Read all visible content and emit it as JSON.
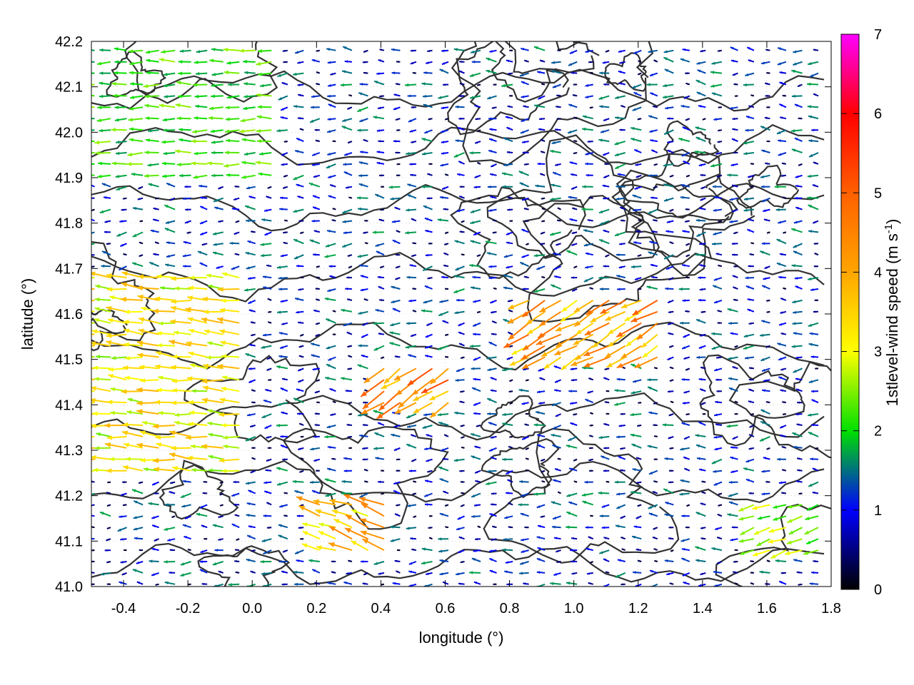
{
  "chart_data": {
    "type": "vector-field",
    "xlabel": "longitude (°)",
    "ylabel": "latitude (°)",
    "xlim": [
      -0.5,
      1.8
    ],
    "ylim": [
      41.0,
      42.2
    ],
    "x_ticks": [
      "-0.4",
      "-0.2",
      "0.0",
      "0.2",
      "0.4",
      "0.6",
      "0.8",
      "1.0",
      "1.2",
      "1.4",
      "1.6",
      "1.8"
    ],
    "x_tick_values": [
      -0.4,
      -0.2,
      0.0,
      0.2,
      0.4,
      0.6,
      0.8,
      1.0,
      1.2,
      1.4,
      1.6,
      1.8
    ],
    "y_ticks": [
      "41.0",
      "41.1",
      "41.2",
      "41.3",
      "41.4",
      "41.5",
      "41.6",
      "41.7",
      "41.8",
      "41.9",
      "42.0",
      "42.1",
      "42.2"
    ],
    "y_tick_values": [
      41.0,
      41.1,
      41.2,
      41.3,
      41.4,
      41.5,
      41.6,
      41.7,
      41.8,
      41.9,
      42.0,
      42.1,
      42.2
    ],
    "grid": true,
    "colorbar": {
      "label_main": "1stlevel-wind speed (m s",
      "label_sup": "-1",
      "label_end": ")",
      "range": [
        0,
        7
      ],
      "ticks": [
        "0",
        "1",
        "2",
        "3",
        "4",
        "5",
        "6",
        "7"
      ],
      "tick_values": [
        0,
        1,
        2,
        3,
        4,
        5,
        6,
        7
      ],
      "palette_stops": [
        {
          "v": 0,
          "color": "#000000"
        },
        {
          "v": 1,
          "color": "#0000ff"
        },
        {
          "v": 2,
          "color": "#00e000"
        },
        {
          "v": 3,
          "color": "#ffff00"
        },
        {
          "v": 4,
          "color": "#ffa500"
        },
        {
          "v": 5,
          "color": "#ff6000"
        },
        {
          "v": 6,
          "color": "#ff0000"
        },
        {
          "v": 7,
          "color": "#ff00ff"
        }
      ]
    },
    "wind_regions": [
      {
        "lon": [
          -0.5,
          0.0
        ],
        "lat": [
          41.25,
          41.7
        ],
        "speed": 3.2,
        "dir_deg": 175
      },
      {
        "lon": [
          -0.5,
          0.1
        ],
        "lat": [
          41.9,
          42.2
        ],
        "speed": 2.2,
        "dir_deg": 180
      },
      {
        "lon": [
          0.4,
          0.65
        ],
        "lat": [
          41.38,
          41.48
        ],
        "speed": 4.6,
        "dir_deg": 215
      },
      {
        "lon": [
          0.85,
          1.3
        ],
        "lat": [
          41.5,
          41.65
        ],
        "speed": 4.2,
        "dir_deg": 210
      },
      {
        "lon": [
          0.2,
          0.45
        ],
        "lat": [
          41.08,
          41.2
        ],
        "speed": 3.8,
        "dir_deg": 160
      },
      {
        "lon": [
          1.55,
          1.8
        ],
        "lat": [
          41.08,
          41.2
        ],
        "speed": 2.6,
        "dir_deg": 200
      }
    ],
    "background_wind": {
      "speed": 1.3,
      "dir_deg": 180
    },
    "contour_color": "#333333"
  }
}
